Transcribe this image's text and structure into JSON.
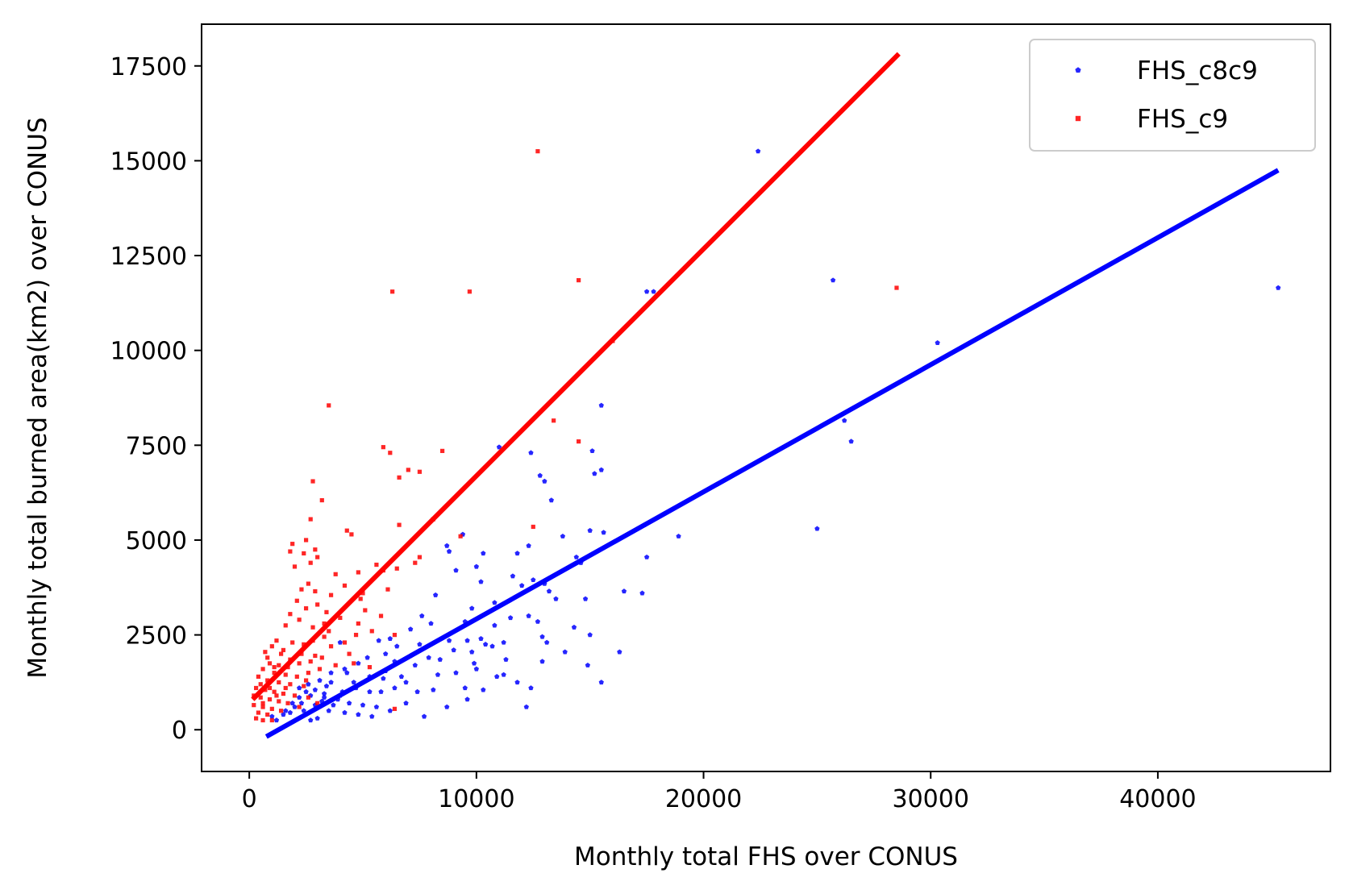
{
  "chart_data": {
    "type": "scatter",
    "title": "",
    "xlabel": "Monthly total FHS over CONUS",
    "ylabel": "Monthly total burned area(km2) over CONUS",
    "xlim": [
      -2100,
      47600
    ],
    "ylim": [
      -1100,
      18600
    ],
    "xticks": [
      0,
      10000,
      20000,
      30000,
      40000
    ],
    "xtick_labels": [
      "0",
      "10000",
      "20000",
      "30000",
      "40000"
    ],
    "yticks": [
      0,
      2500,
      5000,
      7500,
      10000,
      12500,
      15000,
      17500
    ],
    "ytick_labels": [
      "0",
      "2500",
      "5000",
      "7500",
      "10000",
      "12500",
      "15000",
      "17500"
    ],
    "grid": false,
    "legend_position": "top-right",
    "series": [
      {
        "name": "FHS_c8c9",
        "color": "#0000ff",
        "marker": "pentagon",
        "points": [
          [
            22400,
            15250
          ],
          [
            25700,
            11850
          ],
          [
            17500,
            11550
          ],
          [
            17800,
            11550
          ],
          [
            45300,
            11650
          ],
          [
            30300,
            10200
          ],
          [
            15500,
            8550
          ],
          [
            26200,
            8150
          ],
          [
            26500,
            7600
          ],
          [
            11000,
            7450
          ],
          [
            12400,
            7300
          ],
          [
            15100,
            7350
          ],
          [
            12800,
            6700
          ],
          [
            13000,
            6550
          ],
          [
            15200,
            6750
          ],
          [
            15500,
            6850
          ],
          [
            13300,
            6050
          ],
          [
            17400,
            5400
          ],
          [
            25000,
            5300
          ],
          [
            9400,
            5150
          ],
          [
            13800,
            5100
          ],
          [
            15000,
            5250
          ],
          [
            15600,
            5200
          ],
          [
            18900,
            5100
          ],
          [
            8700,
            4850
          ],
          [
            8800,
            4700
          ],
          [
            10300,
            4650
          ],
          [
            11800,
            4650
          ],
          [
            12300,
            4850
          ],
          [
            14400,
            4550
          ],
          [
            14600,
            4400
          ],
          [
            17500,
            4550
          ],
          [
            9100,
            4200
          ],
          [
            10000,
            4300
          ],
          [
            11600,
            4050
          ],
          [
            12000,
            3800
          ],
          [
            12500,
            3950
          ],
          [
            13000,
            3850
          ],
          [
            10200,
            3900
          ],
          [
            8200,
            3550
          ],
          [
            10800,
            3350
          ],
          [
            13200,
            3650
          ],
          [
            13500,
            3450
          ],
          [
            16500,
            3650
          ],
          [
            17300,
            3600
          ],
          [
            9800,
            3200
          ],
          [
            12300,
            3000
          ],
          [
            11500,
            2950
          ],
          [
            8000,
            2800
          ],
          [
            9500,
            2850
          ],
          [
            10800,
            2750
          ],
          [
            12700,
            2850
          ],
          [
            14300,
            2700
          ],
          [
            7600,
            3000
          ],
          [
            7100,
            2650
          ],
          [
            6200,
            2400
          ],
          [
            5700,
            2350
          ],
          [
            4000,
            2300
          ],
          [
            6500,
            2200
          ],
          [
            7500,
            2250
          ],
          [
            9600,
            2350
          ],
          [
            10200,
            2400
          ],
          [
            10400,
            2250
          ],
          [
            10700,
            2200
          ],
          [
            11200,
            2300
          ],
          [
            13100,
            2300
          ],
          [
            12900,
            2450
          ],
          [
            9800,
            2050
          ],
          [
            9000,
            2100
          ],
          [
            7100,
            1950
          ],
          [
            6000,
            2000
          ],
          [
            5200,
            1900
          ],
          [
            4800,
            1750
          ],
          [
            4200,
            1600
          ],
          [
            3600,
            1500
          ],
          [
            3100,
            1300
          ],
          [
            2600,
            1200
          ],
          [
            2200,
            1100
          ],
          [
            2700,
            900
          ],
          [
            3300,
            850
          ],
          [
            3900,
            800
          ],
          [
            4400,
            700
          ],
          [
            5000,
            650
          ],
          [
            5600,
            600
          ],
          [
            6200,
            500
          ],
          [
            2000,
            600
          ],
          [
            2400,
            500
          ],
          [
            1800,
            450
          ],
          [
            1500,
            400
          ],
          [
            2300,
            700
          ],
          [
            2900,
            650
          ],
          [
            3500,
            500
          ],
          [
            4200,
            450
          ],
          [
            4800,
            400
          ],
          [
            5400,
            350
          ],
          [
            3000,
            300
          ],
          [
            2700,
            250
          ],
          [
            1200,
            250
          ],
          [
            2500,
            1000
          ],
          [
            3400,
            1150
          ],
          [
            4600,
            1250
          ],
          [
            5900,
            1350
          ],
          [
            6400,
            1100
          ],
          [
            6900,
            1250
          ],
          [
            7400,
            1000
          ],
          [
            8100,
            1050
          ],
          [
            8700,
            600
          ],
          [
            9600,
            800
          ],
          [
            10300,
            1050
          ],
          [
            10900,
            1400
          ],
          [
            11800,
            1250
          ],
          [
            12400,
            1100
          ],
          [
            12200,
            600
          ],
          [
            13900,
            2050
          ],
          [
            14900,
            1700
          ],
          [
            15500,
            1250
          ],
          [
            16300,
            2050
          ],
          [
            15000,
            2500
          ],
          [
            7700,
            350
          ],
          [
            8400,
            1850
          ],
          [
            8800,
            2350
          ],
          [
            11200,
            1450
          ],
          [
            14800,
            3450
          ],
          [
            6400,
            1800
          ],
          [
            5300,
            1000
          ],
          [
            4100,
            1000
          ],
          [
            3700,
            650
          ],
          [
            3200,
            750
          ],
          [
            2900,
            1050
          ],
          [
            3600,
            1250
          ],
          [
            4300,
            1500
          ],
          [
            6000,
            1550
          ],
          [
            6700,
            1400
          ],
          [
            7300,
            1700
          ],
          [
            8300,
            1450
          ],
          [
            9100,
            1500
          ],
          [
            10000,
            1600
          ],
          [
            11300,
            1850
          ],
          [
            12900,
            1800
          ],
          [
            5800,
            1000
          ],
          [
            5300,
            1400
          ],
          [
            4700,
            1100
          ],
          [
            4000,
            900
          ],
          [
            3300,
            950
          ],
          [
            2200,
            850
          ],
          [
            1900,
            700
          ],
          [
            1600,
            500
          ],
          [
            1000,
            350
          ],
          [
            6900,
            700
          ],
          [
            9500,
            1100
          ],
          [
            9900,
            1750
          ],
          [
            7900,
            1900
          ]
        ]
      },
      {
        "name": "FHS_c9",
        "color": "#ff0000",
        "marker": "square",
        "points": [
          [
            12700,
            15250
          ],
          [
            14500,
            11850
          ],
          [
            28500,
            11650
          ],
          [
            6300,
            11550
          ],
          [
            9700,
            11550
          ],
          [
            16000,
            10250
          ],
          [
            3500,
            8550
          ],
          [
            13400,
            8150
          ],
          [
            14500,
            7600
          ],
          [
            5900,
            7450
          ],
          [
            6200,
            7300
          ],
          [
            8500,
            7350
          ],
          [
            7000,
            6850
          ],
          [
            7500,
            6800
          ],
          [
            6600,
            6650
          ],
          [
            2800,
            6550
          ],
          [
            3200,
            6050
          ],
          [
            2700,
            5550
          ],
          [
            12500,
            5350
          ],
          [
            6600,
            5400
          ],
          [
            8100,
            5550
          ],
          [
            4300,
            5250
          ],
          [
            4500,
            5150
          ],
          [
            9300,
            5100
          ],
          [
            2500,
            5000
          ],
          [
            1900,
            4900
          ],
          [
            1800,
            4700
          ],
          [
            2400,
            4650
          ],
          [
            2900,
            4750
          ],
          [
            3000,
            4550
          ],
          [
            5900,
            4200
          ],
          [
            7500,
            4550
          ],
          [
            7300,
            4400
          ],
          [
            6500,
            4250
          ],
          [
            5600,
            4350
          ],
          [
            4800,
            4150
          ],
          [
            2600,
            3850
          ],
          [
            2900,
            3650
          ],
          [
            2300,
            3700
          ],
          [
            4200,
            3800
          ],
          [
            3600,
            3550
          ],
          [
            4900,
            3450
          ],
          [
            6100,
            3700
          ],
          [
            2100,
            3400
          ],
          [
            3000,
            3300
          ],
          [
            3400,
            3100
          ],
          [
            2500,
            3200
          ],
          [
            1800,
            3050
          ],
          [
            2200,
            2900
          ],
          [
            2800,
            2700
          ],
          [
            1600,
            2750
          ],
          [
            4800,
            2800
          ],
          [
            5400,
            2600
          ],
          [
            6400,
            2500
          ],
          [
            3300,
            2450
          ],
          [
            2800,
            2350
          ],
          [
            2400,
            2250
          ],
          [
            1900,
            2300
          ],
          [
            1200,
            2350
          ],
          [
            1000,
            2200
          ],
          [
            700,
            2050
          ],
          [
            1500,
            2100
          ],
          [
            2300,
            2000
          ],
          [
            3600,
            2200
          ],
          [
            4200,
            2300
          ],
          [
            3200,
            1900
          ],
          [
            2700,
            1800
          ],
          [
            2200,
            1750
          ],
          [
            1700,
            1650
          ],
          [
            1300,
            1700
          ],
          [
            900,
            1750
          ],
          [
            600,
            1600
          ],
          [
            1100,
            1500
          ],
          [
            1600,
            1450
          ],
          [
            2100,
            1400
          ],
          [
            2600,
            1500
          ],
          [
            3100,
            1600
          ],
          [
            3800,
            1700
          ],
          [
            4600,
            1750
          ],
          [
            5300,
            1650
          ],
          [
            400,
            1400
          ],
          [
            800,
            1300
          ],
          [
            1300,
            1250
          ],
          [
            1800,
            1200
          ],
          [
            2400,
            1150
          ],
          [
            300,
            1100
          ],
          [
            700,
            1050
          ],
          [
            1100,
            1000
          ],
          [
            1500,
            950
          ],
          [
            2000,
            900
          ],
          [
            2600,
            850
          ],
          [
            200,
            900
          ],
          [
            500,
            850
          ],
          [
            900,
            800
          ],
          [
            1300,
            750
          ],
          [
            1700,
            700
          ],
          [
            200,
            650
          ],
          [
            600,
            600
          ],
          [
            1000,
            550
          ],
          [
            1400,
            500
          ],
          [
            400,
            450
          ],
          [
            800,
            400
          ],
          [
            300,
            300
          ],
          [
            600,
            250
          ],
          [
            1000,
            250
          ],
          [
            6400,
            550
          ],
          [
            3000,
            700
          ],
          [
            2200,
            600
          ],
          [
            2500,
            1300
          ],
          [
            1800,
            1850
          ],
          [
            3300,
            2800
          ],
          [
            4700,
            2500
          ],
          [
            5100,
            3150
          ],
          [
            3800,
            4100
          ],
          [
            2000,
            4300
          ],
          [
            2700,
            4400
          ],
          [
            1400,
            2000
          ],
          [
            500,
            1200
          ],
          [
            800,
            1900
          ],
          [
            1100,
            1650
          ],
          [
            600,
            700
          ],
          [
            900,
            1100
          ],
          [
            1200,
            900
          ],
          [
            1600,
            1100
          ],
          [
            2900,
            1950
          ],
          [
            3500,
            2600
          ],
          [
            4000,
            2950
          ],
          [
            4400,
            2000
          ],
          [
            5000,
            3600
          ],
          [
            5800,
            3000
          ]
        ]
      }
    ],
    "fit_lines": [
      {
        "series": "FHS_c8c9",
        "color": "#0000ff",
        "x": [
          750,
          45300
        ],
        "y": [
          -180,
          14750
        ]
      },
      {
        "series": "FHS_c9",
        "color": "#ff0000",
        "x": [
          150,
          28600
        ],
        "y": [
          800,
          17820
        ]
      }
    ]
  }
}
